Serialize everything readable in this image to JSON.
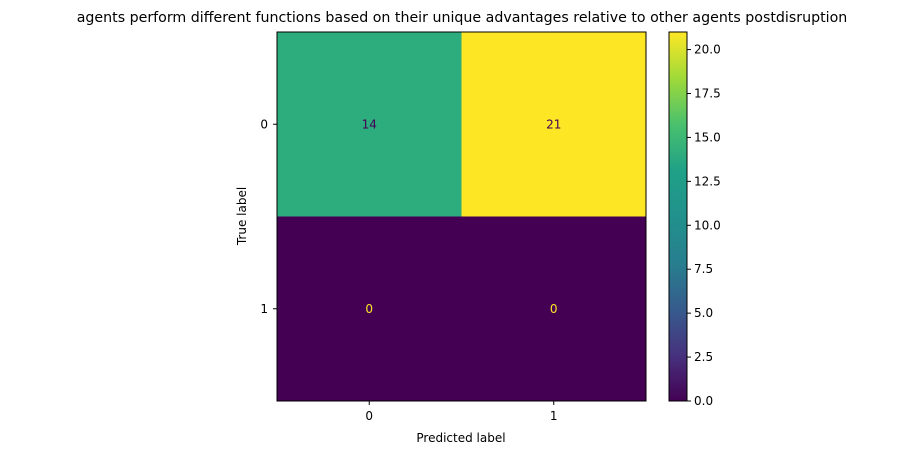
{
  "chart_data": {
    "type": "heatmap",
    "title": "agents perform different functions based on their unique advantages relative to other agents postdisruption",
    "xlabel": "Predicted label",
    "ylabel": "True label",
    "x_categories": [
      "0",
      "1"
    ],
    "y_categories": [
      "0",
      "1"
    ],
    "values": [
      [
        14,
        21
      ],
      [
        0,
        0
      ]
    ],
    "colormap": "viridis",
    "colorbar": {
      "range": [
        0,
        21
      ],
      "ticks": [
        "0.0",
        "2.5",
        "5.0",
        "7.5",
        "10.0",
        "12.5",
        "15.0",
        "17.5",
        "20.0"
      ]
    },
    "grid": false
  }
}
